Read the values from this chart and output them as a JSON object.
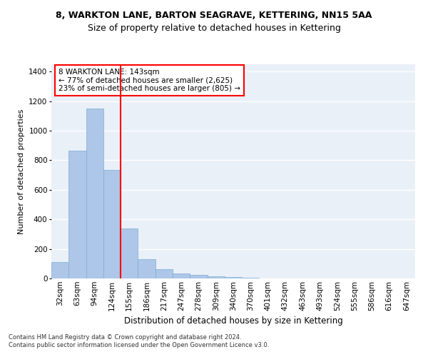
{
  "title1": "8, WARKTON LANE, BARTON SEAGRAVE, KETTERING, NN15 5AA",
  "title2": "Size of property relative to detached houses in Kettering",
  "xlabel": "Distribution of detached houses by size in Kettering",
  "ylabel": "Number of detached properties",
  "categories": [
    "32sqm",
    "63sqm",
    "94sqm",
    "124sqm",
    "155sqm",
    "186sqm",
    "217sqm",
    "247sqm",
    "278sqm",
    "309sqm",
    "340sqm",
    "370sqm",
    "401sqm",
    "432sqm",
    "463sqm",
    "493sqm",
    "524sqm",
    "555sqm",
    "586sqm",
    "616sqm",
    "647sqm"
  ],
  "values": [
    110,
    865,
    1150,
    735,
    340,
    130,
    65,
    35,
    22,
    15,
    10,
    5,
    0,
    0,
    0,
    0,
    0,
    0,
    0,
    0,
    0
  ],
  "bar_color": "#aec6e8",
  "bar_edge_color": "#7aaed4",
  "vline_color": "red",
  "annotation_text": "8 WARKTON LANE: 143sqm\n← 77% of detached houses are smaller (2,625)\n23% of semi-detached houses are larger (805) →",
  "annotation_box_color": "white",
  "annotation_box_edge": "red",
  "ylim": [
    0,
    1450
  ],
  "background_color": "#eaf0f8",
  "grid_color": "white",
  "footer": "Contains HM Land Registry data © Crown copyright and database right 2024.\nContains public sector information licensed under the Open Government Licence v3.0.",
  "title1_fontsize": 9,
  "title2_fontsize": 9,
  "xlabel_fontsize": 8.5,
  "ylabel_fontsize": 8,
  "tick_fontsize": 7.5,
  "annotation_fontsize": 7.5,
  "footer_fontsize": 6
}
